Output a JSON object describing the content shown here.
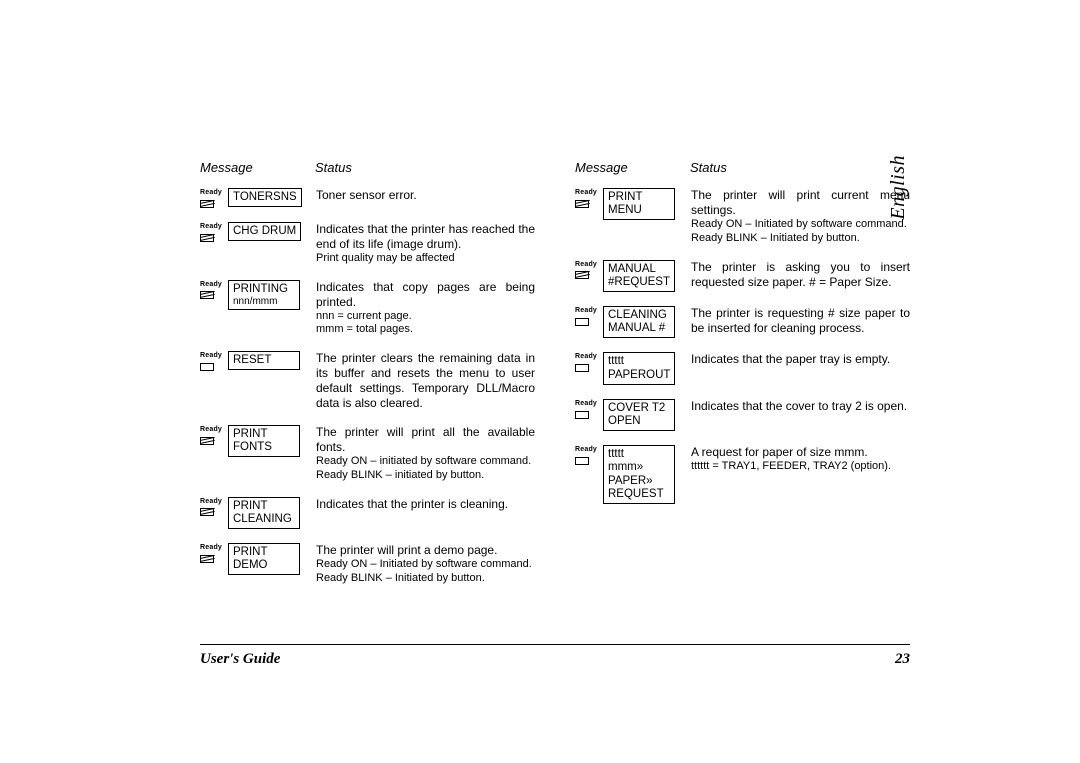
{
  "language_label": "English",
  "footer": {
    "title": "User's Guide",
    "page": "23"
  },
  "headers": {
    "message": "Message",
    "status": "Status"
  },
  "led": {
    "ready_label": "Ready"
  },
  "columns": [
    {
      "entries": [
        {
          "led": "blink",
          "msg_l1": "TONERSNS",
          "msg_l2": "",
          "status_main": "Toner sensor error.",
          "status_sub": ""
        },
        {
          "led": "blink",
          "msg_l1": "CHG DRUM",
          "msg_l2": "",
          "status_main": "Indicates that the printer has reached the end of its life (image drum).",
          "status_sub": "Print quality may be affected"
        },
        {
          "led": "blink",
          "msg_l1": "PRINTING",
          "msg_l2": "nnn/mmm",
          "status_main": "Indicates that copy pages are being printed.",
          "status_sub": "nnn = current page.\nmmm = total pages."
        },
        {
          "led": "off",
          "msg_l1": "RESET",
          "msg_l2": "",
          "status_main": "The printer clears the remaining data in its buffer and resets the menu to user default settings. Temporary DLL/Macro data is also cleared.",
          "status_sub": ""
        },
        {
          "led": "blink",
          "msg_l1": "PRINT",
          "msg_l2": "FONTS",
          "status_main": "The printer will print all the available fonts.",
          "status_sub": "Ready ON – initiated by software command.\nReady BLINK – initiated by button."
        },
        {
          "led": "blink",
          "msg_l1": "PRINT",
          "msg_l2": "CLEANING",
          "status_main": "Indicates that the printer is cleaning.",
          "status_sub": ""
        },
        {
          "led": "blink",
          "msg_l1": "PRINT",
          "msg_l2": "DEMO",
          "status_main": "The printer will print a demo page.",
          "status_sub": "Ready ON – Initiated by software command.\nReady BLINK – Initiated by button."
        }
      ]
    },
    {
      "entries": [
        {
          "led": "blink",
          "msg_l1": "PRINT",
          "msg_l2": "MENU",
          "status_main": "The printer will print current menu settings.",
          "status_sub": "Ready ON – Initiated by software command.\nReady BLINK – Initiated by button."
        },
        {
          "led": "blink",
          "msg_l1": "MANUAL",
          "msg_l2": "#REQUEST",
          "status_main": "The printer is asking you to insert requested size paper. # = Paper Size.",
          "status_sub": ""
        },
        {
          "led": "off",
          "msg_l1": "CLEANING",
          "msg_l2": "MANUAL #",
          "status_main": "The printer is requesting # size paper to be inserted for cleaning process.",
          "status_sub": ""
        },
        {
          "led": "off",
          "msg_l1": "ttttt",
          "msg_l2": "PAPEROUT",
          "status_main": "Indicates that the paper tray is empty.",
          "status_sub": ""
        },
        {
          "led": "off",
          "msg_l1": "COVER T2",
          "msg_l2": "OPEN",
          "status_main": "Indicates that the cover to tray 2 is open.",
          "status_sub": ""
        },
        {
          "led": "off",
          "msg_l1": "ttttt",
          "msg_l2": "mmm»",
          "msg_l3": "PAPER»",
          "msg_l4": "REQUEST",
          "status_main": "A request for paper of size mmm.",
          "status_sub": "tttttt = TRAY1, FEEDER, TRAY2 (option)."
        }
      ]
    }
  ]
}
